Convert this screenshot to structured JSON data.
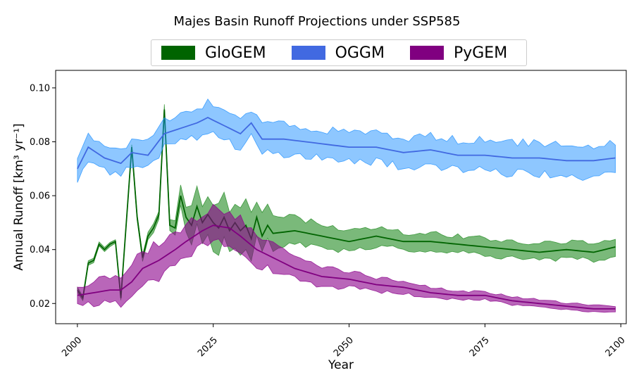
{
  "chart_data": {
    "type": "area",
    "title": "Majes Basin Runoff Projections under SSP585",
    "xlabel": "Year",
    "ylabel": "Annual Runoff [km³ yr⁻¹]",
    "xlim": [
      1996,
      2101
    ],
    "ylim": [
      0.0125,
      0.1065
    ],
    "xticks": [
      2000,
      2025,
      2050,
      2075,
      2100
    ],
    "yticks": [
      0.02,
      0.04,
      0.06,
      0.08,
      0.1
    ],
    "ytick_labels": [
      "0.02",
      "0.04",
      "0.06",
      "0.08",
      "0.10"
    ],
    "grid": false,
    "legend_position": "top-center",
    "x_start": 2000,
    "x_end": 2099,
    "series": [
      {
        "name": "GloGEM",
        "color": "#006400",
        "fill": "#228B22",
        "fill_opacity": 0.6,
        "anchors": [
          [
            2000,
            0.025
          ],
          [
            2001,
            0.022
          ],
          [
            2002,
            0.035
          ],
          [
            2003,
            0.036
          ],
          [
            2004,
            0.042
          ],
          [
            2005,
            0.04
          ],
          [
            2006,
            0.042
          ],
          [
            2007,
            0.043
          ],
          [
            2008,
            0.022
          ],
          [
            2009,
            0.05
          ],
          [
            2010,
            0.078
          ],
          [
            2011,
            0.052
          ],
          [
            2012,
            0.037
          ],
          [
            2013,
            0.045
          ],
          [
            2014,
            0.048
          ],
          [
            2015,
            0.053
          ],
          [
            2016,
            0.092
          ],
          [
            2017,
            0.049
          ],
          [
            2018,
            0.048
          ],
          [
            2019,
            0.06
          ],
          [
            2020,
            0.052
          ],
          [
            2021,
            0.049
          ],
          [
            2022,
            0.056
          ],
          [
            2023,
            0.05
          ],
          [
            2024,
            0.053
          ],
          [
            2025,
            0.05
          ],
          [
            2026,
            0.048
          ],
          [
            2027,
            0.052
          ],
          [
            2028,
            0.047
          ],
          [
            2029,
            0.05
          ],
          [
            2030,
            0.047
          ],
          [
            2031,
            0.049
          ],
          [
            2032,
            0.044
          ],
          [
            2033,
            0.052
          ],
          [
            2034,
            0.045
          ],
          [
            2035,
            0.049
          ],
          [
            2036,
            0.046
          ],
          [
            2040,
            0.047
          ],
          [
            2045,
            0.045
          ],
          [
            2050,
            0.043
          ],
          [
            2055,
            0.045
          ],
          [
            2060,
            0.043
          ],
          [
            2065,
            0.043
          ],
          [
            2070,
            0.042
          ],
          [
            2075,
            0.041
          ],
          [
            2080,
            0.04
          ],
          [
            2085,
            0.039
          ],
          [
            2090,
            0.04
          ],
          [
            2095,
            0.039
          ],
          [
            2099,
            0.041
          ]
        ],
        "spread_anchors": [
          [
            2000,
            0.001
          ],
          [
            2008,
            0.001
          ],
          [
            2016,
            0.002
          ],
          [
            2018,
            0.003
          ],
          [
            2020,
            0.006
          ],
          [
            2024,
            0.012
          ],
          [
            2028,
            0.009
          ],
          [
            2032,
            0.011
          ],
          [
            2035,
            0.008
          ],
          [
            2040,
            0.006
          ],
          [
            2050,
            0.005
          ],
          [
            2060,
            0.004
          ],
          [
            2075,
            0.004
          ],
          [
            2099,
            0.004
          ]
        ]
      },
      {
        "name": "OGGM",
        "color": "#4169E1",
        "fill": "#1E90FF",
        "fill_opacity": 0.5,
        "anchors": [
          [
            2000,
            0.07
          ],
          [
            2002,
            0.078
          ],
          [
            2005,
            0.074
          ],
          [
            2008,
            0.072
          ],
          [
            2010,
            0.076
          ],
          [
            2013,
            0.075
          ],
          [
            2016,
            0.083
          ],
          [
            2019,
            0.085
          ],
          [
            2022,
            0.087
          ],
          [
            2024,
            0.089
          ],
          [
            2026,
            0.087
          ],
          [
            2028,
            0.085
          ],
          [
            2030,
            0.083
          ],
          [
            2032,
            0.087
          ],
          [
            2034,
            0.081
          ],
          [
            2038,
            0.081
          ],
          [
            2042,
            0.08
          ],
          [
            2046,
            0.079
          ],
          [
            2050,
            0.078
          ],
          [
            2055,
            0.078
          ],
          [
            2060,
            0.076
          ],
          [
            2065,
            0.077
          ],
          [
            2070,
            0.075
          ],
          [
            2075,
            0.075
          ],
          [
            2080,
            0.074
          ],
          [
            2085,
            0.074
          ],
          [
            2090,
            0.073
          ],
          [
            2095,
            0.073
          ],
          [
            2099,
            0.074
          ]
        ],
        "spread_anchors": [
          [
            2000,
            0.006
          ],
          [
            2010,
            0.006
          ],
          [
            2020,
            0.007
          ],
          [
            2030,
            0.007
          ],
          [
            2050,
            0.007
          ],
          [
            2070,
            0.007
          ],
          [
            2099,
            0.008
          ]
        ]
      },
      {
        "name": "PyGEM",
        "color": "#800080",
        "fill": "#8B008B",
        "fill_opacity": 0.6,
        "anchors": [
          [
            2000,
            0.023
          ],
          [
            2003,
            0.024
          ],
          [
            2006,
            0.025
          ],
          [
            2008,
            0.025
          ],
          [
            2010,
            0.028
          ],
          [
            2012,
            0.033
          ],
          [
            2015,
            0.036
          ],
          [
            2018,
            0.04
          ],
          [
            2020,
            0.043
          ],
          [
            2023,
            0.047
          ],
          [
            2025,
            0.049
          ],
          [
            2028,
            0.048
          ],
          [
            2030,
            0.045
          ],
          [
            2033,
            0.04
          ],
          [
            2036,
            0.037
          ],
          [
            2040,
            0.033
          ],
          [
            2045,
            0.03
          ],
          [
            2050,
            0.029
          ],
          [
            2055,
            0.027
          ],
          [
            2060,
            0.026
          ],
          [
            2065,
            0.024
          ],
          [
            2070,
            0.023
          ],
          [
            2075,
            0.023
          ],
          [
            2080,
            0.021
          ],
          [
            2085,
            0.02
          ],
          [
            2090,
            0.019
          ],
          [
            2095,
            0.018
          ],
          [
            2099,
            0.018
          ]
        ],
        "spread_anchors": [
          [
            2000,
            0.004
          ],
          [
            2010,
            0.008
          ],
          [
            2020,
            0.008
          ],
          [
            2030,
            0.008
          ],
          [
            2040,
            0.005
          ],
          [
            2050,
            0.004
          ],
          [
            2070,
            0.002
          ],
          [
            2099,
            0.0015
          ]
        ]
      }
    ]
  }
}
